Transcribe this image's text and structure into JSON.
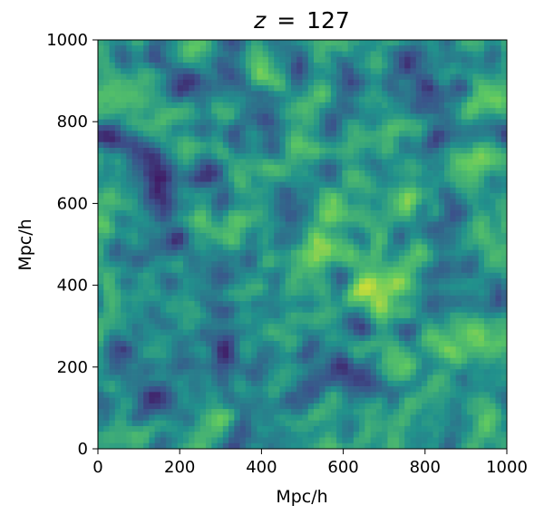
{
  "chart_data": {
    "type": "heatmap",
    "title": "z = 127",
    "title_math": {
      "variable": "z",
      "operator": "=",
      "value": "127"
    },
    "xlabel": "Mpc/h",
    "ylabel": "Mpc/h",
    "xlim": [
      0,
      1000
    ],
    "ylim": [
      0,
      1000
    ],
    "x_ticks": [
      0,
      200,
      400,
      600,
      800,
      1000
    ],
    "y_ticks": [
      0,
      200,
      400,
      600,
      800,
      1000
    ],
    "x_tick_labels": [
      "0",
      "200",
      "400",
      "600",
      "800",
      "1000"
    ],
    "y_tick_labels": [
      "0",
      "200",
      "400",
      "600",
      "800",
      "1000"
    ],
    "colormap": "viridis",
    "colormap_colors": [
      "#440154",
      "#3b528b",
      "#21918c",
      "#5ec962",
      "#fde725"
    ],
    "grid": false,
    "legend": "none",
    "description_field": "2D density field slice, noisy blue-green-yellow texture"
  }
}
